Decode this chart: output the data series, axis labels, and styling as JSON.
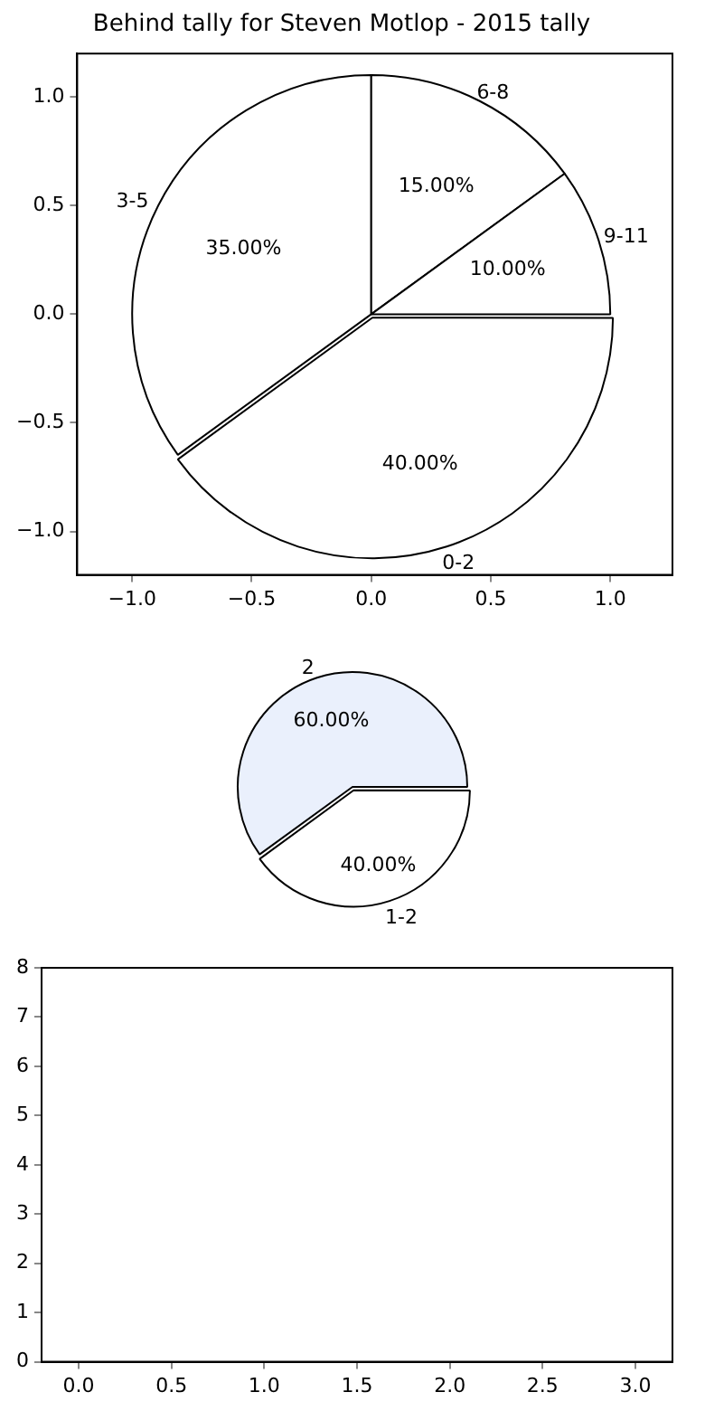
{
  "chart_data": [
    {
      "type": "scatter",
      "title": "Behind tally for Steven Motlop - 2015 tally",
      "xlim": [
        -1.23,
        1.26
      ],
      "xticks": [
        {
          "value": -1,
          "label": "−1.0"
        },
        {
          "value": -0.5,
          "label": "−0.5"
        },
        {
          "value": 0,
          "label": "0.0"
        },
        {
          "value": 0.5,
          "label": "0.5"
        },
        {
          "value": 1,
          "label": "1.0"
        }
      ],
      "ylim": [
        -1.2,
        1.2
      ],
      "yticks": [
        {
          "value": -1,
          "label": "−1.0"
        },
        {
          "value": -0.5,
          "label": "−0.5"
        },
        {
          "value": 0,
          "label": "0.0"
        },
        {
          "value": 0.5,
          "label": "0.5"
        },
        {
          "value": 1,
          "label": "1.0"
        }
      ]
    },
    {
      "type": "pie",
      "categories": [
        "0-2",
        "3-5",
        "6-8",
        "9-11"
      ],
      "values": [
        40,
        35,
        15,
        10
      ],
      "colors": [
        "#ffffff",
        "#ffffff",
        "#ffffff",
        "#ffffff"
      ],
      "value_labels": [
        "40.00%",
        "35.00%",
        "15.00%",
        "10.00%"
      ]
    },
    {
      "type": "pie",
      "categories": [
        "1-2",
        "2"
      ],
      "values": [
        40,
        60
      ],
      "colors": [
        "#ffffff",
        "#eaf0fc"
      ],
      "value_labels": [
        "40.00%",
        "60.00%"
      ]
    },
    {
      "type": "scatter",
      "xlim": [
        -0.2,
        3.2
      ],
      "xticks": [
        {
          "value": 0,
          "label": "0.0"
        },
        {
          "value": 0.5,
          "label": "0.5"
        },
        {
          "value": 1,
          "label": "1.0"
        },
        {
          "value": 1.5,
          "label": "1.5"
        },
        {
          "value": 2,
          "label": "2.0"
        },
        {
          "value": 2.5,
          "label": "2.5"
        },
        {
          "value": 3,
          "label": "3.0"
        }
      ],
      "ylim": [
        0,
        8
      ],
      "yticks": [
        0,
        1,
        2,
        3,
        4,
        5,
        6,
        7,
        8
      ]
    }
  ]
}
